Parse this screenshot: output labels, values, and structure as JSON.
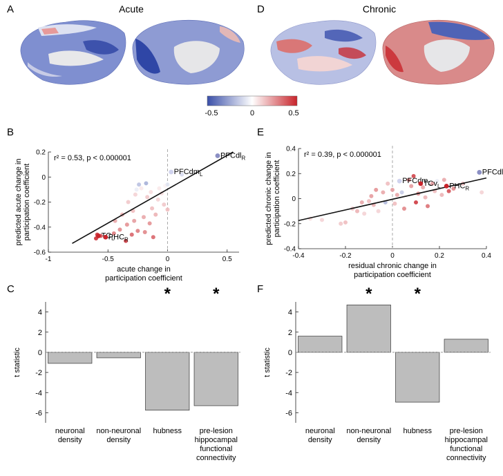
{
  "figure": {
    "panels": {
      "A": {
        "letter": "A",
        "title": "Acute"
      },
      "D": {
        "letter": "D",
        "title": "Chronic"
      },
      "B": {
        "letter": "B"
      },
      "E": {
        "letter": "E"
      },
      "C": {
        "letter": "C"
      },
      "F": {
        "letter": "F"
      }
    },
    "colorbar": {
      "ticks": [
        "-0.5",
        "0",
        "0.5"
      ],
      "colors": [
        "#3a4fa8",
        "#ffffff",
        "#c8242b"
      ]
    }
  },
  "chart_data": [
    {
      "id": "B",
      "type": "scatter",
      "xlabel": [
        "acute change in",
        "participation coefficient"
      ],
      "ylabel": [
        "predicted acute change in",
        "participation coefficient"
      ],
      "xlim": [
        -1,
        0.6
      ],
      "ylim": [
        -0.6,
        0.2
      ],
      "xticks": [
        -1,
        -0.5,
        0,
        0.5
      ],
      "yticks": [
        -0.6,
        -0.4,
        -0.2,
        0,
        0.2
      ],
      "xtick_labels": [
        "-1",
        "-0.5",
        "0",
        "0.5"
      ],
      "ytick_labels": [
        "-0.6",
        "-0.4",
        "-0.2",
        "0",
        "0.2"
      ],
      "stat_text": "r² = 0.53, p < 0.000001",
      "fit_line": [
        [
          -0.8,
          -0.53
        ],
        [
          0.55,
          0.2
        ]
      ],
      "zero_line_x": 0,
      "labeled_points": [
        {
          "x": 0.42,
          "y": 0.17,
          "label": "PFCdl",
          "sub": "R",
          "color": "#8b8fc4"
        },
        {
          "x": 0.03,
          "y": 0.04,
          "label": "PFCdm",
          "sub": "L",
          "color": "#d0d3ee"
        },
        {
          "x": -0.58,
          "y": -0.47,
          "label": "TC",
          "sub": "L",
          "color": "#c8242b"
        },
        {
          "x": -0.52,
          "y": -0.48,
          "label": "PHC",
          "sub": "R",
          "color": "#c8242b"
        }
      ],
      "points": [
        {
          "x": -0.6,
          "y": -0.49,
          "c": 0.95
        },
        {
          "x": -0.59,
          "y": -0.46,
          "c": 0.9
        },
        {
          "x": -0.56,
          "y": -0.47,
          "c": 0.8
        },
        {
          "x": -0.45,
          "y": -0.45,
          "c": 0.6
        },
        {
          "x": -0.44,
          "y": -0.35,
          "c": 0.4
        },
        {
          "x": -0.4,
          "y": -0.42,
          "c": 0.55
        },
        {
          "x": -0.38,
          "y": -0.3,
          "c": 0.35
        },
        {
          "x": -0.35,
          "y": -0.51,
          "c": 0.9
        },
        {
          "x": -0.34,
          "y": -0.38,
          "c": 0.5
        },
        {
          "x": -0.33,
          "y": -0.2,
          "c": 0.25
        },
        {
          "x": -0.3,
          "y": -0.46,
          "c": 0.7
        },
        {
          "x": -0.29,
          "y": -0.27,
          "c": 0.3
        },
        {
          "x": -0.28,
          "y": -0.35,
          "c": 0.45
        },
        {
          "x": -0.27,
          "y": -0.14,
          "c": 0.2
        },
        {
          "x": -0.26,
          "y": -0.1,
          "c": -0.1
        },
        {
          "x": -0.25,
          "y": -0.43,
          "c": 0.6
        },
        {
          "x": -0.24,
          "y": -0.06,
          "c": -0.35
        },
        {
          "x": -0.22,
          "y": -0.09,
          "c": 0.1
        },
        {
          "x": -0.2,
          "y": -0.32,
          "c": 0.4
        },
        {
          "x": -0.19,
          "y": -0.44,
          "c": 0.55
        },
        {
          "x": -0.18,
          "y": -0.05,
          "c": -0.45
        },
        {
          "x": -0.17,
          "y": -0.16,
          "c": 0.25
        },
        {
          "x": -0.15,
          "y": -0.37,
          "c": 0.5
        },
        {
          "x": -0.14,
          "y": -0.12,
          "c": 0.15
        },
        {
          "x": -0.13,
          "y": -0.25,
          "c": 0.3
        },
        {
          "x": -0.12,
          "y": -0.48,
          "c": 0.7
        },
        {
          "x": -0.1,
          "y": -0.3,
          "c": 0.35
        },
        {
          "x": -0.08,
          "y": -0.18,
          "c": 0.2
        },
        {
          "x": -0.07,
          "y": -0.09,
          "c": 0.1
        },
        {
          "x": -0.05,
          "y": -0.13,
          "c": 0.15
        },
        {
          "x": -0.03,
          "y": -0.22,
          "c": 0.25
        },
        {
          "x": -0.02,
          "y": -0.07,
          "c": 0.05
        },
        {
          "x": 0.0,
          "y": -0.26,
          "c": 0.3
        },
        {
          "x": 0.0,
          "y": -0.06,
          "c": -0.15
        },
        {
          "x": 0.12,
          "y": 0.02,
          "c": -0.2
        }
      ]
    },
    {
      "id": "E",
      "type": "scatter",
      "xlabel": [
        "residual chronic change in",
        "participation coefficient"
      ],
      "ylabel": [
        "predicted chronic change in",
        "participation coefficient"
      ],
      "xlim": [
        -0.4,
        0.4
      ],
      "ylim": [
        -0.4,
        0.4
      ],
      "xticks": [
        -0.4,
        -0.2,
        0,
        0.2,
        0.4
      ],
      "yticks": [
        -0.4,
        -0.2,
        0,
        0.2,
        0.4
      ],
      "xtick_labels": [
        "-0.4",
        "-0.2",
        "0",
        "0.2",
        "0.4"
      ],
      "ytick_labels": [
        "-0.4",
        "-0.2",
        "0",
        "0.2",
        "0.4"
      ],
      "stat_text": "r² = 0.39, p < 0.000001",
      "fit_line": [
        [
          -0.4,
          -0.175
        ],
        [
          0.4,
          0.165
        ]
      ],
      "zero_line_x": 0,
      "labeled_points": [
        {
          "x": 0.37,
          "y": 0.21,
          "label": "PFCdl",
          "sub": "R",
          "color": "#8b8fc4"
        },
        {
          "x": 0.03,
          "y": 0.14,
          "label": "PFCdm",
          "sub": "L",
          "color": "#d0d3ee"
        },
        {
          "x": 0.12,
          "y": 0.12,
          "label": "TCv",
          "sub": "L",
          "color": "#c8242b"
        },
        {
          "x": 0.23,
          "y": 0.1,
          "label": "PHC",
          "sub": "R",
          "color": "#c8242b"
        }
      ],
      "points": [
        {
          "x": -0.35,
          "y": -0.16,
          "c": 0.15
        },
        {
          "x": -0.3,
          "y": -0.17,
          "c": 0.2
        },
        {
          "x": -0.22,
          "y": -0.2,
          "c": 0.25
        },
        {
          "x": -0.2,
          "y": -0.19,
          "c": 0.3
        },
        {
          "x": -0.17,
          "y": -0.08,
          "c": 0.25
        },
        {
          "x": -0.15,
          "y": -0.1,
          "c": 0.35
        },
        {
          "x": -0.13,
          "y": -0.03,
          "c": 0.4
        },
        {
          "x": -0.12,
          "y": -0.12,
          "c": 0.2
        },
        {
          "x": -0.1,
          "y": -0.02,
          "c": 0.3
        },
        {
          "x": -0.09,
          "y": 0.02,
          "c": 0.45
        },
        {
          "x": -0.08,
          "y": -0.05,
          "c": 0.35
        },
        {
          "x": -0.07,
          "y": 0.07,
          "c": 0.5
        },
        {
          "x": -0.06,
          "y": -0.1,
          "c": 0.2
        },
        {
          "x": -0.04,
          "y": 0.05,
          "c": 0.4
        },
        {
          "x": -0.03,
          "y": -0.03,
          "c": -0.4
        },
        {
          "x": -0.02,
          "y": 0.12,
          "c": 0.3
        },
        {
          "x": 0.0,
          "y": 0.07,
          "c": 0.45
        },
        {
          "x": 0.01,
          "y": -0.04,
          "c": 0.3
        },
        {
          "x": 0.02,
          "y": 0.03,
          "c": 0.4
        },
        {
          "x": 0.04,
          "y": 0.05,
          "c": -0.3
        },
        {
          "x": 0.05,
          "y": -0.08,
          "c": 0.55
        },
        {
          "x": 0.07,
          "y": 0.15,
          "c": 0.6
        },
        {
          "x": 0.08,
          "y": 0.1,
          "c": 0.45
        },
        {
          "x": 0.09,
          "y": 0.18,
          "c": 0.85
        },
        {
          "x": 0.1,
          "y": -0.03,
          "c": 0.9
        },
        {
          "x": 0.11,
          "y": 0.04,
          "c": 0.5
        },
        {
          "x": 0.13,
          "y": 0.09,
          "c": 0.4
        },
        {
          "x": 0.14,
          "y": 0.01,
          "c": 0.35
        },
        {
          "x": 0.15,
          "y": -0.06,
          "c": 0.65
        },
        {
          "x": 0.17,
          "y": 0.12,
          "c": 0.45
        },
        {
          "x": 0.18,
          "y": 0.06,
          "c": 0.3
        },
        {
          "x": 0.19,
          "y": 0.14,
          "c": -0.1
        },
        {
          "x": 0.21,
          "y": 0.03,
          "c": 0.35
        },
        {
          "x": 0.22,
          "y": 0.15,
          "c": 0.4
        },
        {
          "x": 0.24,
          "y": 0.06,
          "c": 0.8
        },
        {
          "x": 0.26,
          "y": 0.08,
          "c": 0.55
        },
        {
          "x": 0.3,
          "y": 0.12,
          "c": 0.3
        },
        {
          "x": 0.38,
          "y": 0.05,
          "c": 0.2
        }
      ]
    },
    {
      "id": "C",
      "type": "bar",
      "ylabel": "t statistic",
      "ylim": [
        -7,
        5
      ],
      "yticks": [
        -6,
        -4,
        -2,
        0,
        2,
        4
      ],
      "ytick_labels": [
        "-6",
        "-4",
        "-2",
        "0",
        "2",
        "4"
      ],
      "categories": [
        [
          "neuronal",
          "density"
        ],
        [
          "non-neuronal",
          "density"
        ],
        [
          "hubness"
        ],
        [
          "pre-lesion",
          "hippocampal",
          "functional",
          "connectivity"
        ]
      ],
      "values": [
        -1.1,
        -0.55,
        -5.75,
        -5.3
      ],
      "significant": [
        false,
        false,
        true,
        true
      ],
      "sig_marker": "*",
      "bar_color": "#bdbdbd"
    },
    {
      "id": "F",
      "type": "bar",
      "ylabel": "t statistic",
      "ylim": [
        -7,
        5
      ],
      "yticks": [
        -6,
        -4,
        -2,
        0,
        2,
        4
      ],
      "ytick_labels": [
        "-6",
        "-4",
        "-2",
        "0",
        "2",
        "4"
      ],
      "categories": [
        [
          "neuronal",
          "density"
        ],
        [
          "non-neuronal",
          "density"
        ],
        [
          "hubness"
        ],
        [
          "pre-lesion",
          "hippocampal",
          "functional",
          "connectivity"
        ]
      ],
      "values": [
        1.6,
        4.7,
        -4.95,
        1.3
      ],
      "significant": [
        false,
        true,
        true,
        false
      ],
      "sig_marker": "*",
      "bar_color": "#bdbdbd"
    }
  ]
}
